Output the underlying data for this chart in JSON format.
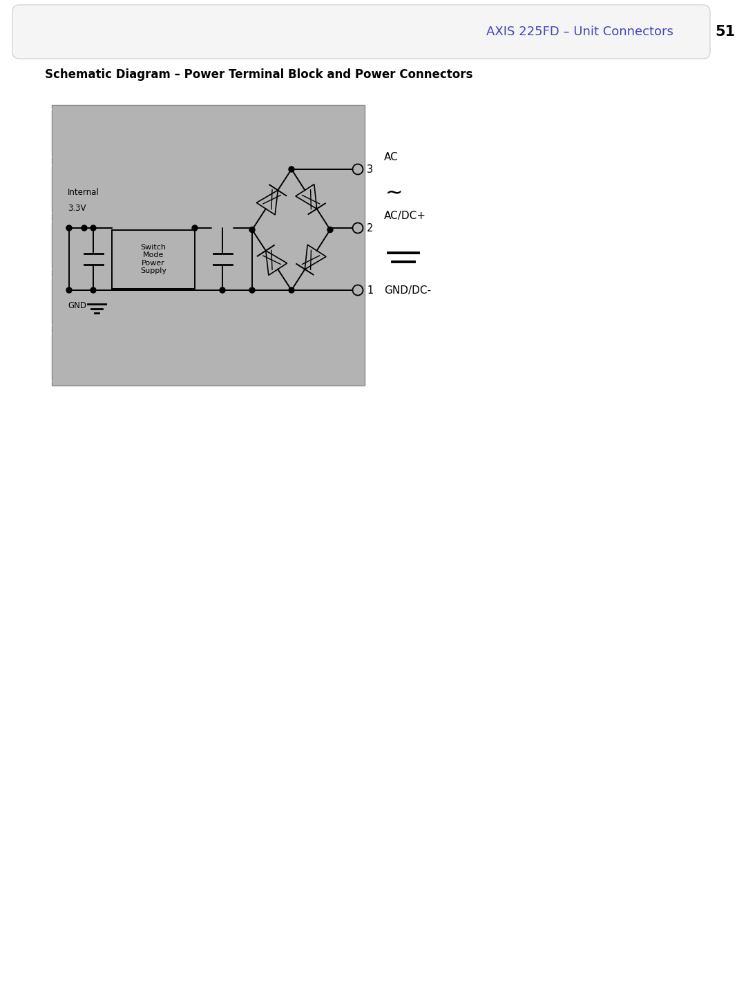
{
  "page_title": "AXIS 225FD – Unit Connectors",
  "page_number": "51",
  "section_title": "Schematic Diagram – Power Terminal Block and Power Connectors",
  "bg_color": "#ffffff",
  "gray_bg": "#b3b3b3",
  "header_title_color": "#4444bb",
  "header_bg": "#f5f5f5",
  "fig_width": 10.8,
  "fig_height": 14.3,
  "dpi": 100,
  "lw": 1.4
}
